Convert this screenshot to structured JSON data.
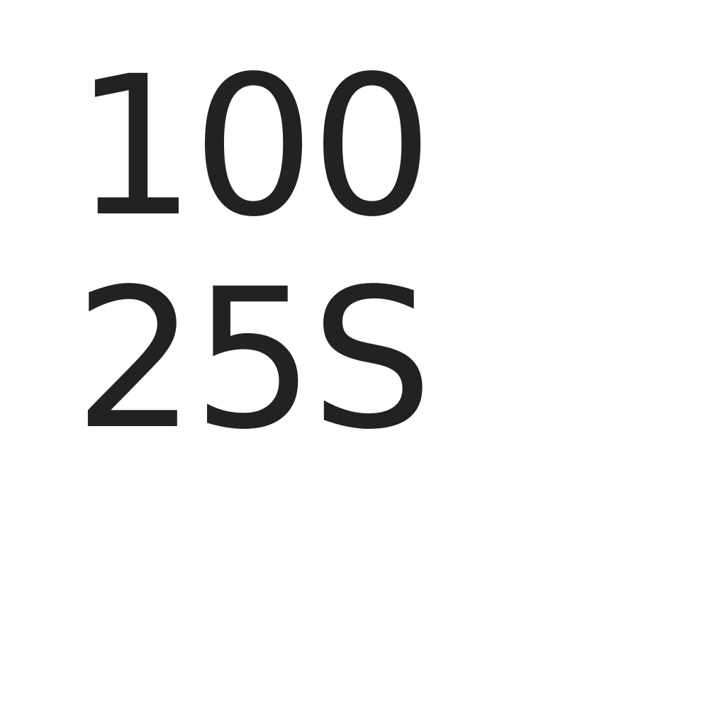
{
  "content": {
    "line1": "100",
    "line2": "25S"
  },
  "colors": {
    "text": "#222222",
    "background": "#ffffff"
  }
}
